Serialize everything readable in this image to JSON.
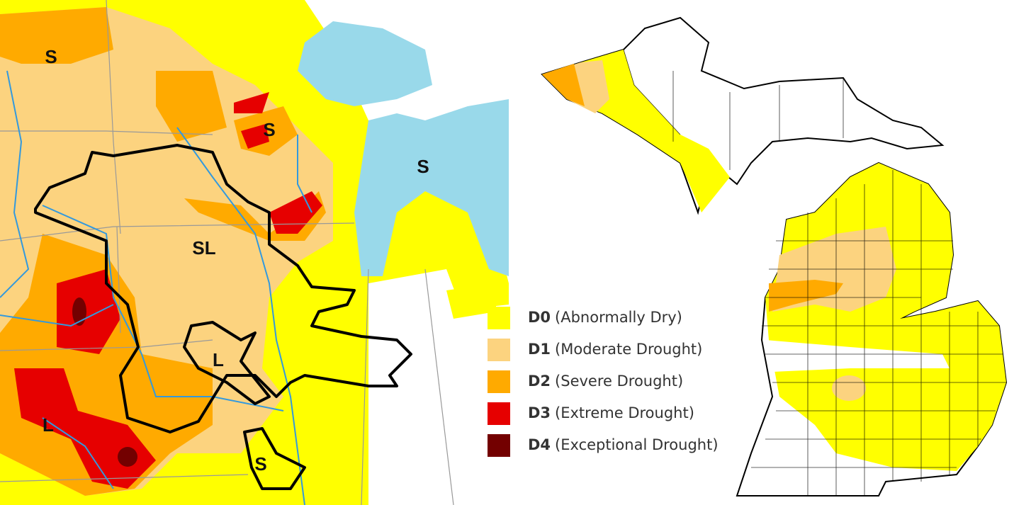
{
  "left_map": {
    "labels": [
      "S",
      "S",
      "S",
      "SL",
      "L",
      "L",
      "S"
    ]
  },
  "legend": {
    "items": [
      {
        "code": "D0",
        "description": "(Abnormally Dry)",
        "color": "#ffff00"
      },
      {
        "code": "D1",
        "description": "(Moderate Drought)",
        "color": "#fcd37f"
      },
      {
        "code": "D2",
        "description": "(Severe Drought)",
        "color": "#ffaa00"
      },
      {
        "code": "D3",
        "description": "(Extreme Drought)",
        "color": "#e60000"
      },
      {
        "code": "D4",
        "description": "(Exceptional Drought)",
        "color": "#730000"
      }
    ]
  }
}
